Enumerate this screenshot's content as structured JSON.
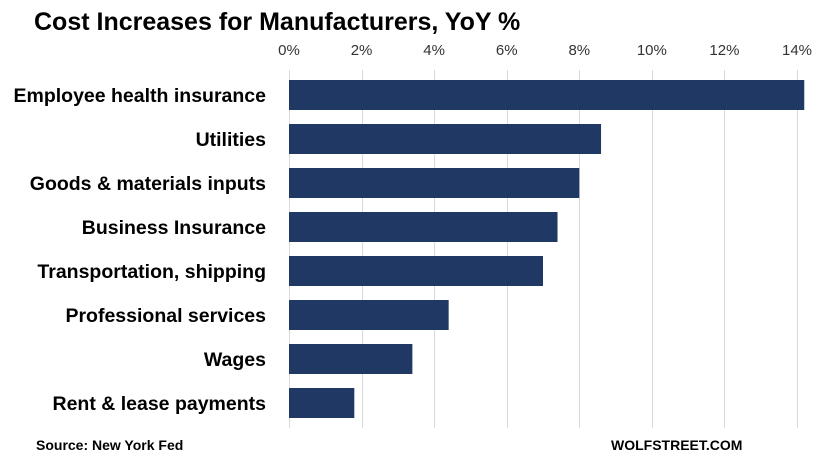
{
  "chart_data": {
    "type": "bar",
    "orientation": "horizontal",
    "title": "Cost Increases for Manufacturers, YoY %",
    "categories": [
      "Employee health insurance",
      "Utilities",
      "Goods & materials inputs",
      "Business Insurance",
      "Transportation, shipping",
      "Professional services",
      "Wages",
      "Rent & lease payments"
    ],
    "values": [
      14.2,
      8.6,
      8.0,
      7.4,
      7.0,
      4.4,
      3.4,
      1.8
    ],
    "xlim": [
      0,
      14
    ],
    "xticks": [
      0,
      2,
      4,
      6,
      8,
      10,
      12,
      14
    ],
    "tick_suffix": "%",
    "xlabel": "",
    "ylabel": "",
    "axis_position": "top",
    "grid": true,
    "bar_color": "#1f3864",
    "source": "Source: New York Fed",
    "brand": "WOLFSTREET.COM"
  }
}
